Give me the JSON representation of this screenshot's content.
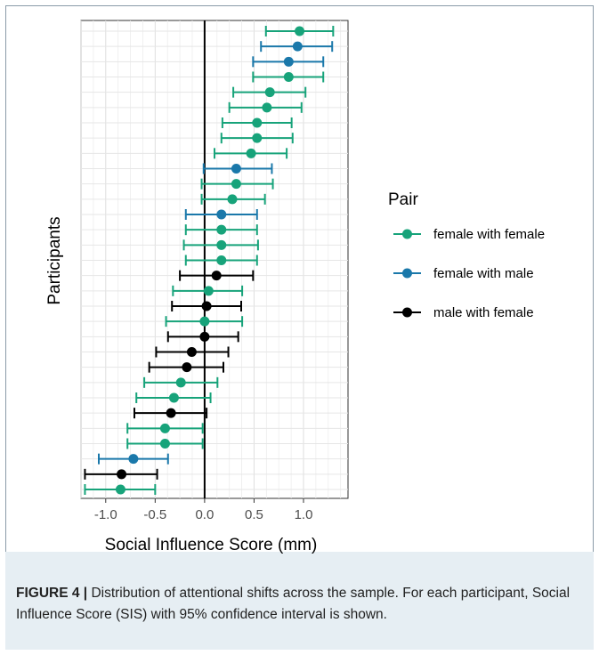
{
  "chart_data": {
    "type": "scatter",
    "xlabel": "Social Influence Score (mm)",
    "ylabel": "Participants",
    "xlim": [
      -1.25,
      1.45
    ],
    "xticks": [
      "-1.0",
      "-0.5",
      "0.0",
      "0.5",
      "1.0"
    ],
    "legend": {
      "title": "Pair",
      "position": "right",
      "entries": [
        {
          "name": "female with female",
          "color": "#17a37a"
        },
        {
          "name": "female with male",
          "color": "#1a78aa"
        },
        {
          "name": "male with female",
          "color": "#000000"
        }
      ]
    },
    "grid": true,
    "vline_at": 0,
    "points": [
      {
        "x": 0.96,
        "lo": 0.62,
        "hi": 1.3,
        "group": 0
      },
      {
        "x": 0.94,
        "lo": 0.57,
        "hi": 1.29,
        "group": 1
      },
      {
        "x": 0.85,
        "lo": 0.49,
        "hi": 1.2,
        "group": 1
      },
      {
        "x": 0.85,
        "lo": 0.49,
        "hi": 1.2,
        "group": 0
      },
      {
        "x": 0.66,
        "lo": 0.29,
        "hi": 1.02,
        "group": 0
      },
      {
        "x": 0.63,
        "lo": 0.25,
        "hi": 0.98,
        "group": 0
      },
      {
        "x": 0.53,
        "lo": 0.18,
        "hi": 0.88,
        "group": 0
      },
      {
        "x": 0.53,
        "lo": 0.17,
        "hi": 0.89,
        "group": 0
      },
      {
        "x": 0.47,
        "lo": 0.1,
        "hi": 0.83,
        "group": 0
      },
      {
        "x": 0.32,
        "lo": -0.01,
        "hi": 0.68,
        "group": 1
      },
      {
        "x": 0.32,
        "lo": -0.03,
        "hi": 0.69,
        "group": 0
      },
      {
        "x": 0.28,
        "lo": -0.03,
        "hi": 0.61,
        "group": 0
      },
      {
        "x": 0.17,
        "lo": -0.19,
        "hi": 0.53,
        "group": 1
      },
      {
        "x": 0.17,
        "lo": -0.19,
        "hi": 0.53,
        "group": 0
      },
      {
        "x": 0.17,
        "lo": -0.21,
        "hi": 0.54,
        "group": 0
      },
      {
        "x": 0.17,
        "lo": -0.19,
        "hi": 0.53,
        "group": 0
      },
      {
        "x": 0.12,
        "lo": -0.25,
        "hi": 0.49,
        "group": 2
      },
      {
        "x": 0.04,
        "lo": -0.32,
        "hi": 0.38,
        "group": 0
      },
      {
        "x": 0.02,
        "lo": -0.33,
        "hi": 0.37,
        "group": 2
      },
      {
        "x": 0.0,
        "lo": -0.39,
        "hi": 0.38,
        "group": 0
      },
      {
        "x": 0.0,
        "lo": -0.37,
        "hi": 0.34,
        "group": 2
      },
      {
        "x": -0.13,
        "lo": -0.49,
        "hi": 0.24,
        "group": 2
      },
      {
        "x": -0.18,
        "lo": -0.56,
        "hi": 0.19,
        "group": 2
      },
      {
        "x": -0.24,
        "lo": -0.61,
        "hi": 0.13,
        "group": 0
      },
      {
        "x": -0.31,
        "lo": -0.69,
        "hi": 0.06,
        "group": 0
      },
      {
        "x": -0.34,
        "lo": -0.71,
        "hi": 0.02,
        "group": 2
      },
      {
        "x": -0.4,
        "lo": -0.78,
        "hi": -0.02,
        "group": 0
      },
      {
        "x": -0.4,
        "lo": -0.78,
        "hi": -0.02,
        "group": 0
      },
      {
        "x": -0.72,
        "lo": -1.07,
        "hi": -0.37,
        "group": 1
      },
      {
        "x": -0.84,
        "lo": -1.21,
        "hi": -0.48,
        "group": 2
      },
      {
        "x": -0.85,
        "lo": -1.21,
        "hi": -0.5,
        "group": 0
      }
    ]
  },
  "caption": {
    "label": "FIGURE 4 |",
    "text": " Distribution of attentional shifts across the sample. For each participant, Social Influence Score (SIS) with 95% confidence interval is shown."
  }
}
